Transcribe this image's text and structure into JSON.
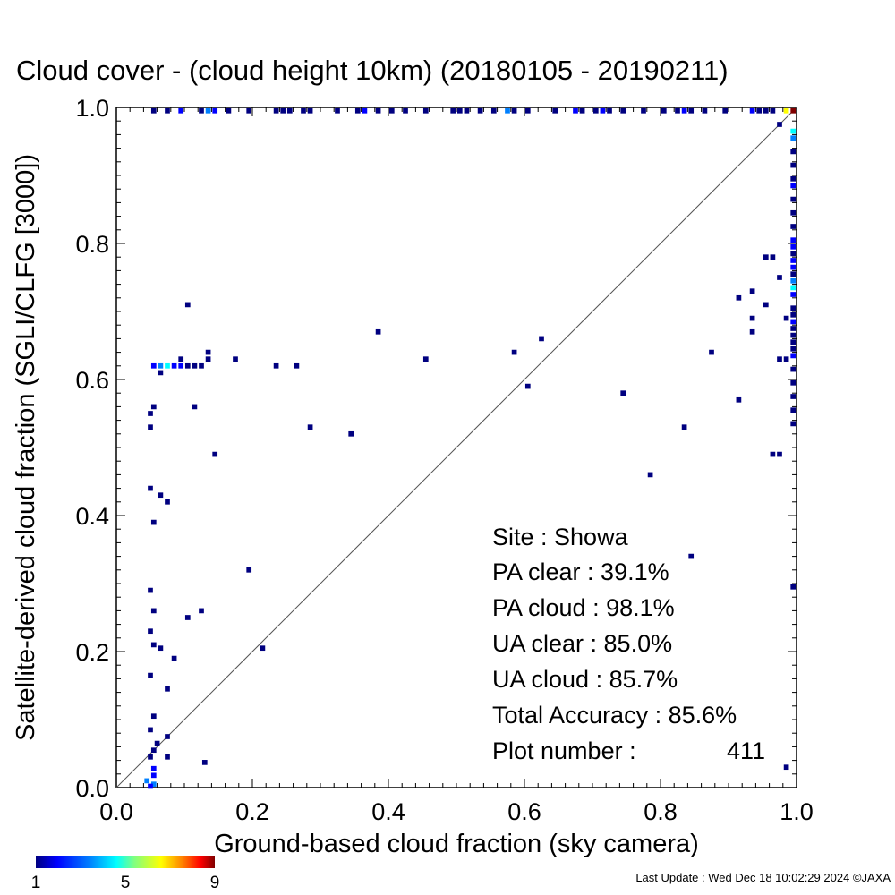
{
  "chart_data": {
    "type": "heatmap",
    "title": "Cloud cover - (cloud height 10km)  (20180105 - 20190211)",
    "xlabel": "Ground-based cloud fraction (sky camera)",
    "ylabel": "Satellite-derived cloud fraction (SGLI/CLFG [3000])",
    "xlim": [
      0,
      1
    ],
    "ylim": [
      0,
      1
    ],
    "x_ticks": [
      "0.0",
      "0.2",
      "0.4",
      "0.6",
      "0.8",
      "1.0"
    ],
    "y_ticks": [
      "0.0",
      "0.2",
      "0.4",
      "0.6",
      "0.8",
      "1.0"
    ],
    "reference_line": "1:1 diagonal",
    "colorbar": {
      "min": 1,
      "max": 9,
      "ticks": [
        "1",
        "5",
        "9"
      ],
      "colors": [
        "#000080",
        "#0000ff",
        "#0080ff",
        "#00ffff",
        "#80ff80",
        "#ffff00",
        "#ff8000",
        "#ff0000",
        "#800000"
      ]
    },
    "bin_size": 0.01,
    "points": [
      {
        "x": 0.05,
        "y": 0.55,
        "count": 1
      },
      {
        "x": 0.05,
        "y": 0.53,
        "count": 1
      },
      {
        "x": 0.055,
        "y": 0.56,
        "count": 1
      },
      {
        "x": 0.05,
        "y": 0.44,
        "count": 1
      },
      {
        "x": 0.065,
        "y": 0.43,
        "count": 1
      },
      {
        "x": 0.075,
        "y": 0.42,
        "count": 1
      },
      {
        "x": 0.055,
        "y": 0.39,
        "count": 1
      },
      {
        "x": 0.05,
        "y": 0.29,
        "count": 1
      },
      {
        "x": 0.055,
        "y": 0.26,
        "count": 1
      },
      {
        "x": 0.05,
        "y": 0.23,
        "count": 1
      },
      {
        "x": 0.055,
        "y": 0.21,
        "count": 1
      },
      {
        "x": 0.065,
        "y": 0.205,
        "count": 1
      },
      {
        "x": 0.085,
        "y": 0.19,
        "count": 1
      },
      {
        "x": 0.05,
        "y": 0.165,
        "count": 1
      },
      {
        "x": 0.075,
        "y": 0.145,
        "count": 1
      },
      {
        "x": 0.055,
        "y": 0.105,
        "count": 1
      },
      {
        "x": 0.05,
        "y": 0.085,
        "count": 1
      },
      {
        "x": 0.075,
        "y": 0.075,
        "count": 1
      },
      {
        "x": 0.06,
        "y": 0.065,
        "count": 1
      },
      {
        "x": 0.055,
        "y": 0.055,
        "count": 1
      },
      {
        "x": 0.075,
        "y": 0.045,
        "count": 1
      },
      {
        "x": 0.05,
        "y": 0.045,
        "count": 1
      },
      {
        "x": 0.13,
        "y": 0.037,
        "count": 1
      },
      {
        "x": 0.055,
        "y": 0.028,
        "count": 2
      },
      {
        "x": 0.055,
        "y": 0.018,
        "count": 2
      },
      {
        "x": 0.045,
        "y": 0.01,
        "count": 3
      },
      {
        "x": 0.055,
        "y": 0.005,
        "count": 3
      },
      {
        "x": 0.05,
        "y": 0.002,
        "count": 2
      },
      {
        "x": 0.055,
        "y": 0.62,
        "count": 2
      },
      {
        "x": 0.065,
        "y": 0.62,
        "count": 3
      },
      {
        "x": 0.075,
        "y": 0.62,
        "count": 4
      },
      {
        "x": 0.085,
        "y": 0.62,
        "count": 2
      },
      {
        "x": 0.095,
        "y": 0.62,
        "count": 2
      },
      {
        "x": 0.105,
        "y": 0.62,
        "count": 1
      },
      {
        "x": 0.115,
        "y": 0.62,
        "count": 1
      },
      {
        "x": 0.125,
        "y": 0.62,
        "count": 1
      },
      {
        "x": 0.095,
        "y": 0.63,
        "count": 1
      },
      {
        "x": 0.135,
        "y": 0.63,
        "count": 1
      },
      {
        "x": 0.135,
        "y": 0.64,
        "count": 1
      },
      {
        "x": 0.065,
        "y": 0.61,
        "count": 1
      },
      {
        "x": 0.105,
        "y": 0.71,
        "count": 1
      },
      {
        "x": 0.115,
        "y": 0.56,
        "count": 1
      },
      {
        "x": 0.145,
        "y": 0.49,
        "count": 1
      },
      {
        "x": 0.175,
        "y": 0.63,
        "count": 1
      },
      {
        "x": 0.235,
        "y": 0.62,
        "count": 1
      },
      {
        "x": 0.265,
        "y": 0.62,
        "count": 1
      },
      {
        "x": 0.285,
        "y": 0.53,
        "count": 1
      },
      {
        "x": 0.345,
        "y": 0.52,
        "count": 1
      },
      {
        "x": 0.385,
        "y": 0.67,
        "count": 1
      },
      {
        "x": 0.455,
        "y": 0.63,
        "count": 1
      },
      {
        "x": 0.585,
        "y": 0.64,
        "count": 1
      },
      {
        "x": 0.605,
        "y": 0.59,
        "count": 1
      },
      {
        "x": 0.625,
        "y": 0.66,
        "count": 1
      },
      {
        "x": 0.745,
        "y": 0.58,
        "count": 1
      },
      {
        "x": 0.785,
        "y": 0.46,
        "count": 1
      },
      {
        "x": 0.835,
        "y": 0.53,
        "count": 1
      },
      {
        "x": 0.845,
        "y": 0.34,
        "count": 1
      },
      {
        "x": 0.875,
        "y": 0.64,
        "count": 1
      },
      {
        "x": 0.915,
        "y": 0.72,
        "count": 1
      },
      {
        "x": 0.915,
        "y": 0.57,
        "count": 1
      },
      {
        "x": 0.935,
        "y": 0.73,
        "count": 1
      },
      {
        "x": 0.935,
        "y": 0.69,
        "count": 1
      },
      {
        "x": 0.935,
        "y": 0.67,
        "count": 1
      },
      {
        "x": 0.955,
        "y": 0.71,
        "count": 1
      },
      {
        "x": 0.965,
        "y": 0.78,
        "count": 1
      },
      {
        "x": 0.955,
        "y": 0.78,
        "count": 1
      },
      {
        "x": 0.975,
        "y": 0.75,
        "count": 1
      },
      {
        "x": 0.965,
        "y": 0.49,
        "count": 1
      },
      {
        "x": 0.975,
        "y": 0.49,
        "count": 1
      },
      {
        "x": 0.975,
        "y": 0.63,
        "count": 1
      },
      {
        "x": 0.985,
        "y": 0.63,
        "count": 1
      },
      {
        "x": 0.985,
        "y": 0.69,
        "count": 1
      },
      {
        "x": 0.985,
        "y": 0.03,
        "count": 1
      },
      {
        "x": 0.195,
        "y": 0.32,
        "count": 1
      },
      {
        "x": 0.105,
        "y": 0.25,
        "count": 1
      },
      {
        "x": 0.125,
        "y": 0.26,
        "count": 1
      },
      {
        "x": 0.215,
        "y": 0.205,
        "count": 1
      },
      {
        "x": 0.975,
        "y": 0.975,
        "count": 1
      },
      {
        "x": 0.995,
        "y": 0.995,
        "count": 9
      },
      {
        "x": 0.985,
        "y": 0.995,
        "count": 6
      },
      {
        "x": 0.995,
        "y": 0.965,
        "count": 4
      },
      {
        "x": 0.995,
        "y": 0.955,
        "count": 3
      },
      {
        "x": 0.995,
        "y": 0.935,
        "count": 1
      },
      {
        "x": 0.995,
        "y": 0.915,
        "count": 1
      },
      {
        "x": 0.995,
        "y": 0.895,
        "count": 1
      },
      {
        "x": 0.995,
        "y": 0.885,
        "count": 2
      },
      {
        "x": 0.995,
        "y": 0.865,
        "count": 1
      },
      {
        "x": 0.995,
        "y": 0.845,
        "count": 1
      },
      {
        "x": 0.995,
        "y": 0.825,
        "count": 1
      },
      {
        "x": 0.995,
        "y": 0.805,
        "count": 2
      },
      {
        "x": 0.995,
        "y": 0.795,
        "count": 2
      },
      {
        "x": 0.995,
        "y": 0.785,
        "count": 1
      },
      {
        "x": 0.995,
        "y": 0.775,
        "count": 2
      },
      {
        "x": 0.995,
        "y": 0.765,
        "count": 2
      },
      {
        "x": 0.995,
        "y": 0.755,
        "count": 1
      },
      {
        "x": 0.995,
        "y": 0.745,
        "count": 3
      },
      {
        "x": 0.995,
        "y": 0.735,
        "count": 4
      },
      {
        "x": 0.995,
        "y": 0.725,
        "count": 2
      },
      {
        "x": 0.995,
        "y": 0.705,
        "count": 1
      },
      {
        "x": 0.995,
        "y": 0.695,
        "count": 1
      },
      {
        "x": 0.995,
        "y": 0.685,
        "count": 2
      },
      {
        "x": 0.995,
        "y": 0.675,
        "count": 1
      },
      {
        "x": 0.995,
        "y": 0.665,
        "count": 1
      },
      {
        "x": 0.995,
        "y": 0.655,
        "count": 1
      },
      {
        "x": 0.995,
        "y": 0.645,
        "count": 1
      },
      {
        "x": 0.995,
        "y": 0.635,
        "count": 2
      },
      {
        "x": 0.995,
        "y": 0.615,
        "count": 1
      },
      {
        "x": 0.995,
        "y": 0.595,
        "count": 1
      },
      {
        "x": 0.995,
        "y": 0.575,
        "count": 1
      },
      {
        "x": 0.995,
        "y": 0.555,
        "count": 1
      },
      {
        "x": 0.995,
        "y": 0.535,
        "count": 1
      },
      {
        "x": 0.995,
        "y": 0.295,
        "count": 1
      },
      {
        "x": 0.055,
        "y": 0.995,
        "count": 1
      },
      {
        "x": 0.075,
        "y": 0.995,
        "count": 1
      },
      {
        "x": 0.095,
        "y": 0.995,
        "count": 2
      },
      {
        "x": 0.125,
        "y": 0.995,
        "count": 1
      },
      {
        "x": 0.135,
        "y": 0.995,
        "count": 3
      },
      {
        "x": 0.145,
        "y": 0.995,
        "count": 2
      },
      {
        "x": 0.165,
        "y": 0.995,
        "count": 1
      },
      {
        "x": 0.195,
        "y": 0.995,
        "count": 1
      },
      {
        "x": 0.235,
        "y": 0.995,
        "count": 1
      },
      {
        "x": 0.245,
        "y": 0.995,
        "count": 1
      },
      {
        "x": 0.255,
        "y": 0.995,
        "count": 1
      },
      {
        "x": 0.275,
        "y": 0.995,
        "count": 1
      },
      {
        "x": 0.285,
        "y": 0.995,
        "count": 1
      },
      {
        "x": 0.325,
        "y": 0.995,
        "count": 1
      },
      {
        "x": 0.355,
        "y": 0.995,
        "count": 1
      },
      {
        "x": 0.365,
        "y": 0.995,
        "count": 2
      },
      {
        "x": 0.385,
        "y": 0.995,
        "count": 1
      },
      {
        "x": 0.405,
        "y": 0.995,
        "count": 1
      },
      {
        "x": 0.425,
        "y": 0.995,
        "count": 1
      },
      {
        "x": 0.455,
        "y": 0.995,
        "count": 1
      },
      {
        "x": 0.495,
        "y": 0.995,
        "count": 1
      },
      {
        "x": 0.505,
        "y": 0.995,
        "count": 1
      },
      {
        "x": 0.515,
        "y": 0.995,
        "count": 1
      },
      {
        "x": 0.535,
        "y": 0.995,
        "count": 1
      },
      {
        "x": 0.555,
        "y": 0.995,
        "count": 1
      },
      {
        "x": 0.575,
        "y": 0.995,
        "count": 3
      },
      {
        "x": 0.585,
        "y": 0.995,
        "count": 1
      },
      {
        "x": 0.605,
        "y": 0.995,
        "count": 1
      },
      {
        "x": 0.645,
        "y": 0.995,
        "count": 1
      },
      {
        "x": 0.675,
        "y": 0.995,
        "count": 2
      },
      {
        "x": 0.685,
        "y": 0.995,
        "count": 1
      },
      {
        "x": 0.705,
        "y": 0.995,
        "count": 1
      },
      {
        "x": 0.715,
        "y": 0.995,
        "count": 2
      },
      {
        "x": 0.725,
        "y": 0.995,
        "count": 1
      },
      {
        "x": 0.745,
        "y": 0.995,
        "count": 1
      },
      {
        "x": 0.775,
        "y": 0.995,
        "count": 1
      },
      {
        "x": 0.805,
        "y": 0.995,
        "count": 1
      },
      {
        "x": 0.825,
        "y": 0.995,
        "count": 1
      },
      {
        "x": 0.835,
        "y": 0.995,
        "count": 2
      },
      {
        "x": 0.845,
        "y": 0.995,
        "count": 1
      },
      {
        "x": 0.865,
        "y": 0.995,
        "count": 1
      },
      {
        "x": 0.895,
        "y": 0.995,
        "count": 1
      },
      {
        "x": 0.935,
        "y": 0.995,
        "count": 2
      },
      {
        "x": 0.945,
        "y": 0.995,
        "count": 1
      },
      {
        "x": 0.955,
        "y": 0.995,
        "count": 1
      },
      {
        "x": 0.965,
        "y": 0.995,
        "count": 1
      }
    ]
  },
  "stats": {
    "site": "Site : Showa",
    "pa_clear": "PA clear :  39.1%",
    "pa_cloud": "PA cloud :  98.1%",
    "ua_clear": "UA clear :  85.0%",
    "ua_cloud": "UA cloud :  85.7%",
    "total_accuracy": "Total Accuracy :  85.6%",
    "plot_number_label": "Plot number :",
    "plot_number_value": "411"
  },
  "footer": {
    "last_update": "Last Update : Wed Dec 18 10:02:29 2024  ©JAXA"
  }
}
